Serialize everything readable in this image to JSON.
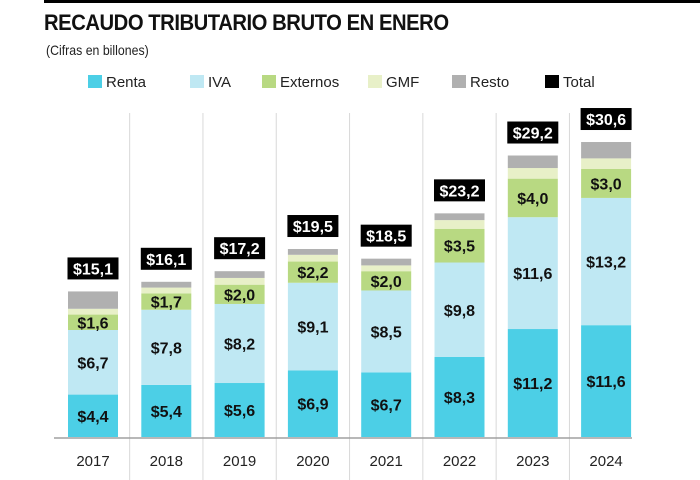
{
  "chart_data": {
    "type": "bar",
    "stacked": true,
    "title": "RECAUDO TRIBUTARIO BRUTO EN ENERO",
    "subtitle": "(Cifras en billones)",
    "xlabel": "",
    "ylabel": "",
    "categories": [
      "2017",
      "2018",
      "2019",
      "2020",
      "2021",
      "2022",
      "2023",
      "2024"
    ],
    "series": [
      {
        "name": "Renta",
        "color": "#4ccfe6",
        "values": [
          4.4,
          5.4,
          5.6,
          6.9,
          6.7,
          8.3,
          11.2,
          11.6
        ],
        "labels": [
          "$4,4",
          "$5,4",
          "$5,6",
          "$6,9",
          "$6,7",
          "$8,3",
          "$11,2",
          "$11,6"
        ]
      },
      {
        "name": "IVA",
        "color": "#bfe8f3",
        "values": [
          6.7,
          7.8,
          8.2,
          9.1,
          8.5,
          9.8,
          11.6,
          13.2
        ],
        "labels": [
          "$6,7",
          "$7,8",
          "$8,2",
          "$9,1",
          "$8,5",
          "$9,8",
          "$11,6",
          "$13,2"
        ]
      },
      {
        "name": "Externos",
        "color": "#b8d982",
        "values": [
          1.6,
          1.7,
          2.0,
          2.2,
          2.0,
          3.5,
          4.0,
          3.0
        ],
        "labels": [
          "$1,6",
          "$1,7",
          "$2,0",
          "$2,2",
          "$2,0",
          "$3,5",
          "$4,0",
          "$3,0"
        ]
      },
      {
        "name": "GMF",
        "color": "#e8f0c8",
        "values": [
          0.6,
          0.6,
          0.7,
          0.7,
          0.6,
          0.9,
          1.1,
          1.1
        ],
        "labels": [
          "",
          "",
          "",
          "",
          "",
          "",
          "",
          ""
        ]
      },
      {
        "name": "Resto",
        "color": "#b0b0b0",
        "values": [
          1.8,
          0.6,
          0.7,
          0.6,
          0.7,
          0.7,
          1.3,
          1.7
        ],
        "labels": [
          "",
          "",
          "",
          "",
          "",
          "",
          "",
          ""
        ]
      }
    ],
    "totals": {
      "name": "Total",
      "color": "#000000",
      "values": [
        15.1,
        16.1,
        17.2,
        19.5,
        18.5,
        23.2,
        29.2,
        30.6
      ],
      "labels": [
        "$15,1",
        "$16,1",
        "$17,2",
        "$19,5",
        "$18,5",
        "$23,2",
        "$29,2",
        "$30,6"
      ]
    },
    "legend": {
      "placement": "top",
      "entries": [
        "Renta",
        "IVA",
        "Externos",
        "GMF",
        "Resto",
        "Total"
      ]
    },
    "ylim": [
      0,
      32
    ],
    "grid": false,
    "separators": true
  }
}
